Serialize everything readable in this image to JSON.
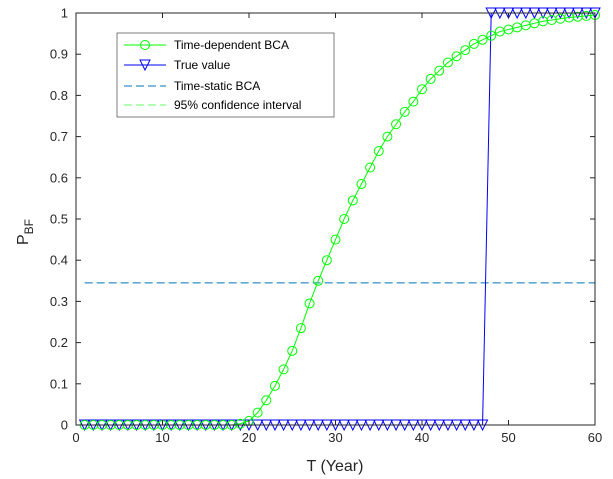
{
  "chart_data": {
    "type": "line",
    "xlabel": "T (Year)",
    "ylabel_main": "P",
    "ylabel_sub": "BF",
    "xlim": [
      0,
      60
    ],
    "ylim": [
      0,
      1
    ],
    "xticks": [
      0,
      10,
      20,
      30,
      40,
      50,
      60
    ],
    "yticks": [
      0,
      0.1,
      0.2,
      0.3,
      0.4,
      0.5,
      0.6,
      0.7,
      0.8,
      0.9,
      1
    ],
    "grid": false,
    "legend_position": "top-left",
    "series": [
      {
        "name": "Time-dependent BCA",
        "color": "#00ff00",
        "style": "solid",
        "marker": "circle",
        "x": [
          1,
          2,
          3,
          4,
          5,
          6,
          7,
          8,
          9,
          10,
          11,
          12,
          13,
          14,
          15,
          16,
          17,
          18,
          19,
          20,
          21,
          22,
          23,
          24,
          25,
          26,
          27,
          28,
          29,
          30,
          31,
          32,
          33,
          34,
          35,
          36,
          37,
          38,
          39,
          40,
          41,
          42,
          43,
          44,
          45,
          46,
          47,
          48,
          49,
          50,
          51,
          52,
          53,
          54,
          55,
          56,
          57,
          58,
          59,
          60
        ],
        "y": [
          0,
          0,
          0,
          0,
          0,
          0,
          0,
          0,
          0,
          0,
          0,
          0,
          0,
          0,
          0,
          0,
          0,
          0,
          0.003,
          0.01,
          0.03,
          0.06,
          0.095,
          0.135,
          0.18,
          0.235,
          0.295,
          0.35,
          0.4,
          0.45,
          0.5,
          0.545,
          0.585,
          0.625,
          0.665,
          0.7,
          0.73,
          0.76,
          0.785,
          0.815,
          0.84,
          0.86,
          0.88,
          0.895,
          0.91,
          0.925,
          0.935,
          0.945,
          0.955,
          0.96,
          0.965,
          0.97,
          0.975,
          0.98,
          0.983,
          0.986,
          0.989,
          0.991,
          0.993,
          0.995
        ]
      },
      {
        "name": "True value",
        "color": "#0000ff",
        "style": "solid",
        "marker": "triangle-down",
        "x": [
          1,
          2,
          3,
          4,
          5,
          6,
          7,
          8,
          9,
          10,
          11,
          12,
          13,
          14,
          15,
          16,
          17,
          18,
          19,
          20,
          21,
          22,
          23,
          24,
          25,
          26,
          27,
          28,
          29,
          30,
          31,
          32,
          33,
          34,
          35,
          36,
          37,
          38,
          39,
          40,
          41,
          42,
          43,
          44,
          45,
          46,
          47,
          48,
          49,
          50,
          51,
          52,
          53,
          54,
          55,
          56,
          57,
          58,
          59,
          60
        ],
        "y": [
          0,
          0,
          0,
          0,
          0,
          0,
          0,
          0,
          0,
          0,
          0,
          0,
          0,
          0,
          0,
          0,
          0,
          0,
          0,
          0,
          0,
          0,
          0,
          0,
          0,
          0,
          0,
          0,
          0,
          0,
          0,
          0,
          0,
          0,
          0,
          0,
          0,
          0,
          0,
          0,
          0,
          0,
          0,
          0,
          0,
          0,
          0,
          1,
          1,
          1,
          1,
          1,
          1,
          1,
          1,
          1,
          1,
          1,
          1,
          1
        ]
      },
      {
        "name": "Time-static BCA",
        "color": "#0072bd",
        "style": "dashed",
        "marker": "none",
        "x": [
          1,
          60
        ],
        "y": [
          0.345,
          0.345
        ]
      },
      {
        "name": "95% confidence interval",
        "color": "#66ff66",
        "style": "dashed",
        "marker": "none",
        "x": [],
        "y": []
      }
    ]
  }
}
